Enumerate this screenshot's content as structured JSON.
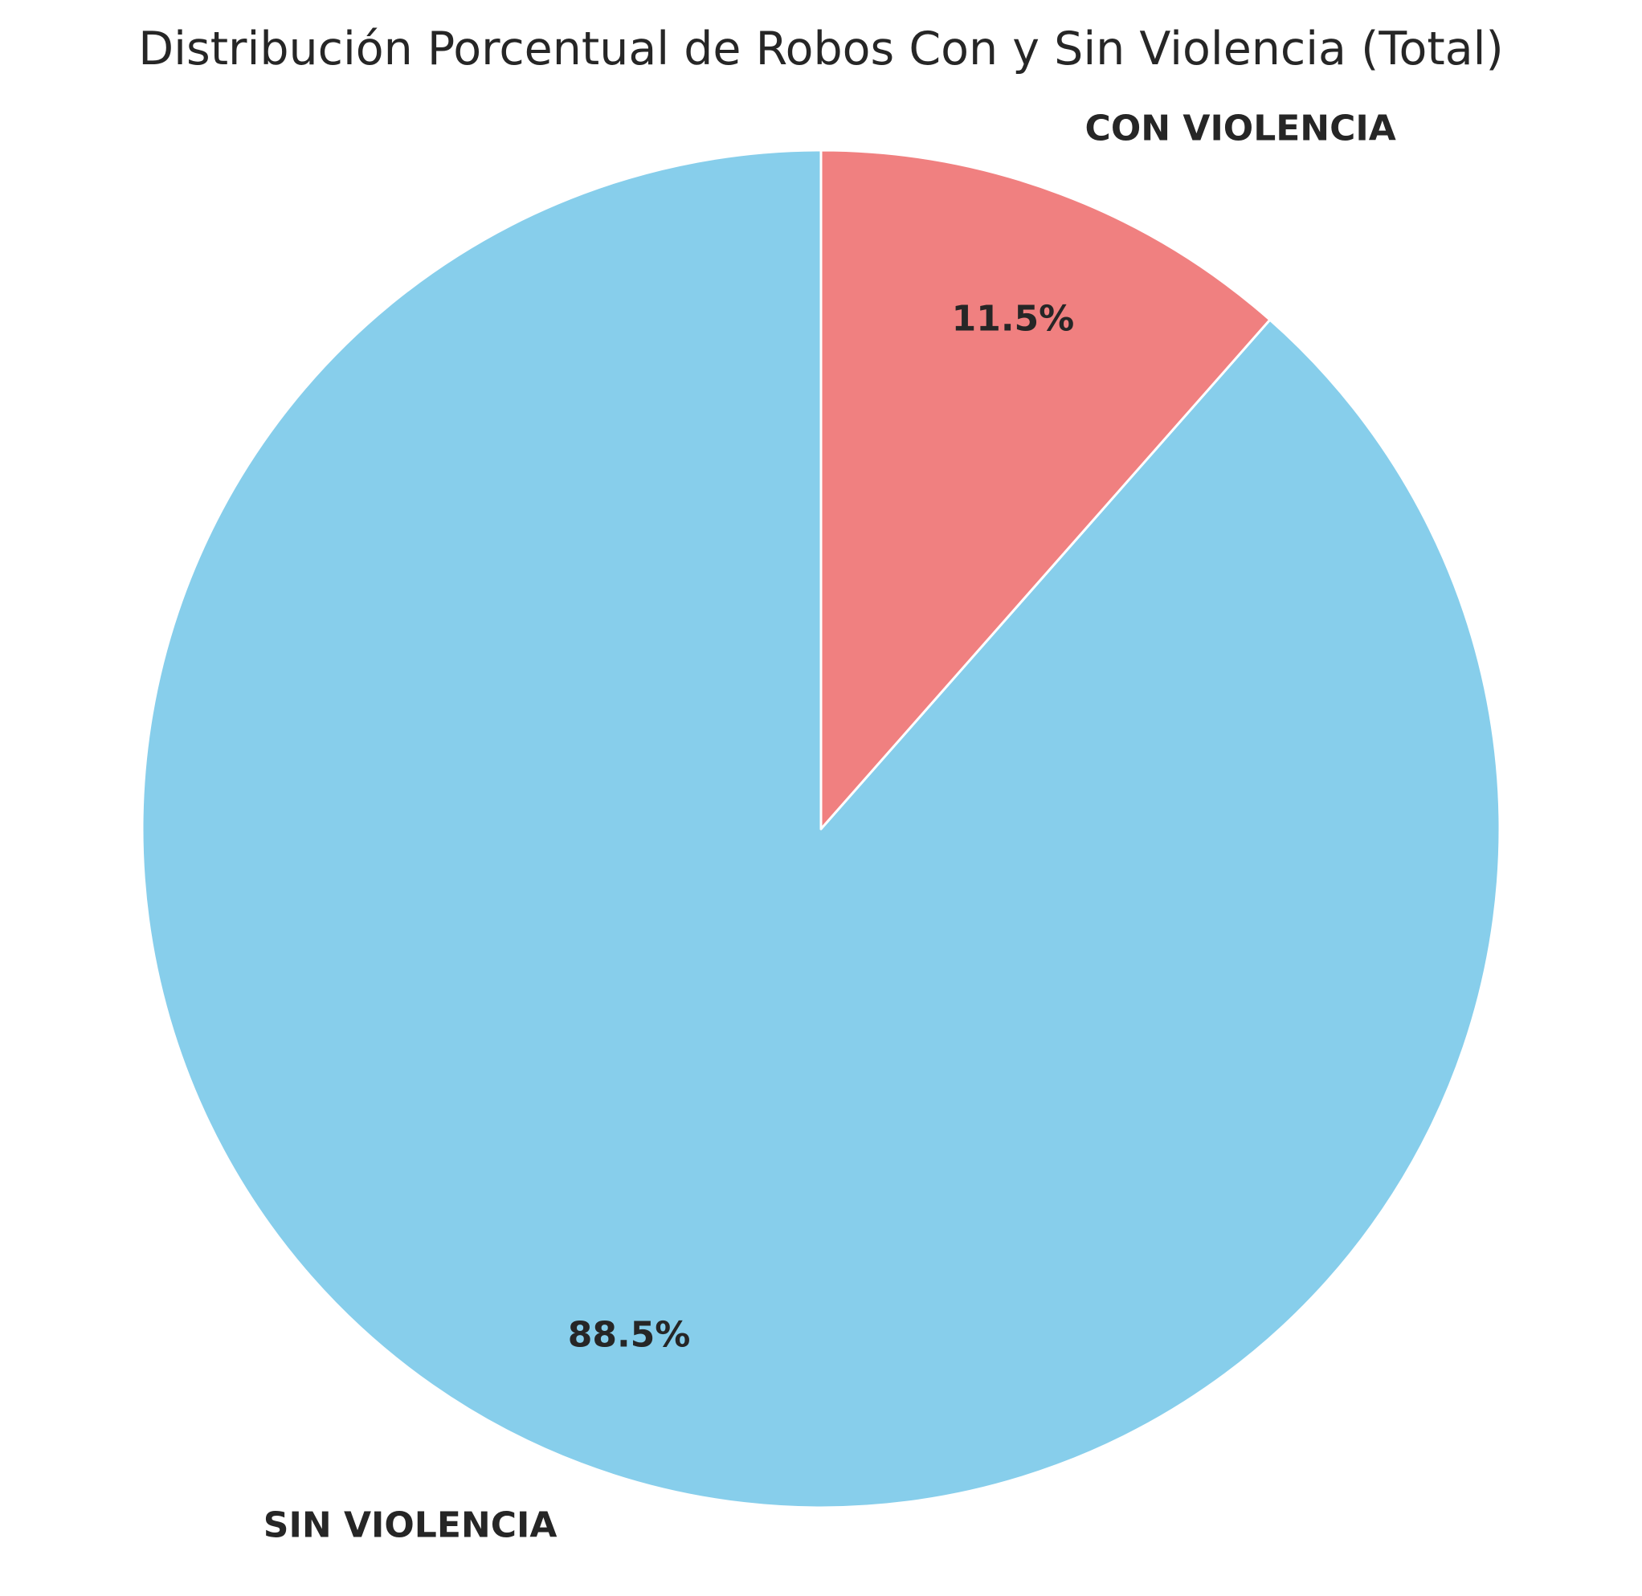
{
  "chart_data": {
    "type": "pie",
    "title": "Distribución Porcentual de Robos Con y Sin Violencia (Total)",
    "start_angle_deg": 90,
    "direction": "counterclockwise",
    "slices": [
      {
        "label": "SIN VIOLENCIA",
        "value": 88.5,
        "pct_label": "88.5%",
        "color": "#87CEEB"
      },
      {
        "label": "CON VIOLENCIA",
        "value": 11.5,
        "pct_label": "11.5%",
        "color": "#F08080"
      }
    ],
    "edge_color": "#ffffff"
  }
}
